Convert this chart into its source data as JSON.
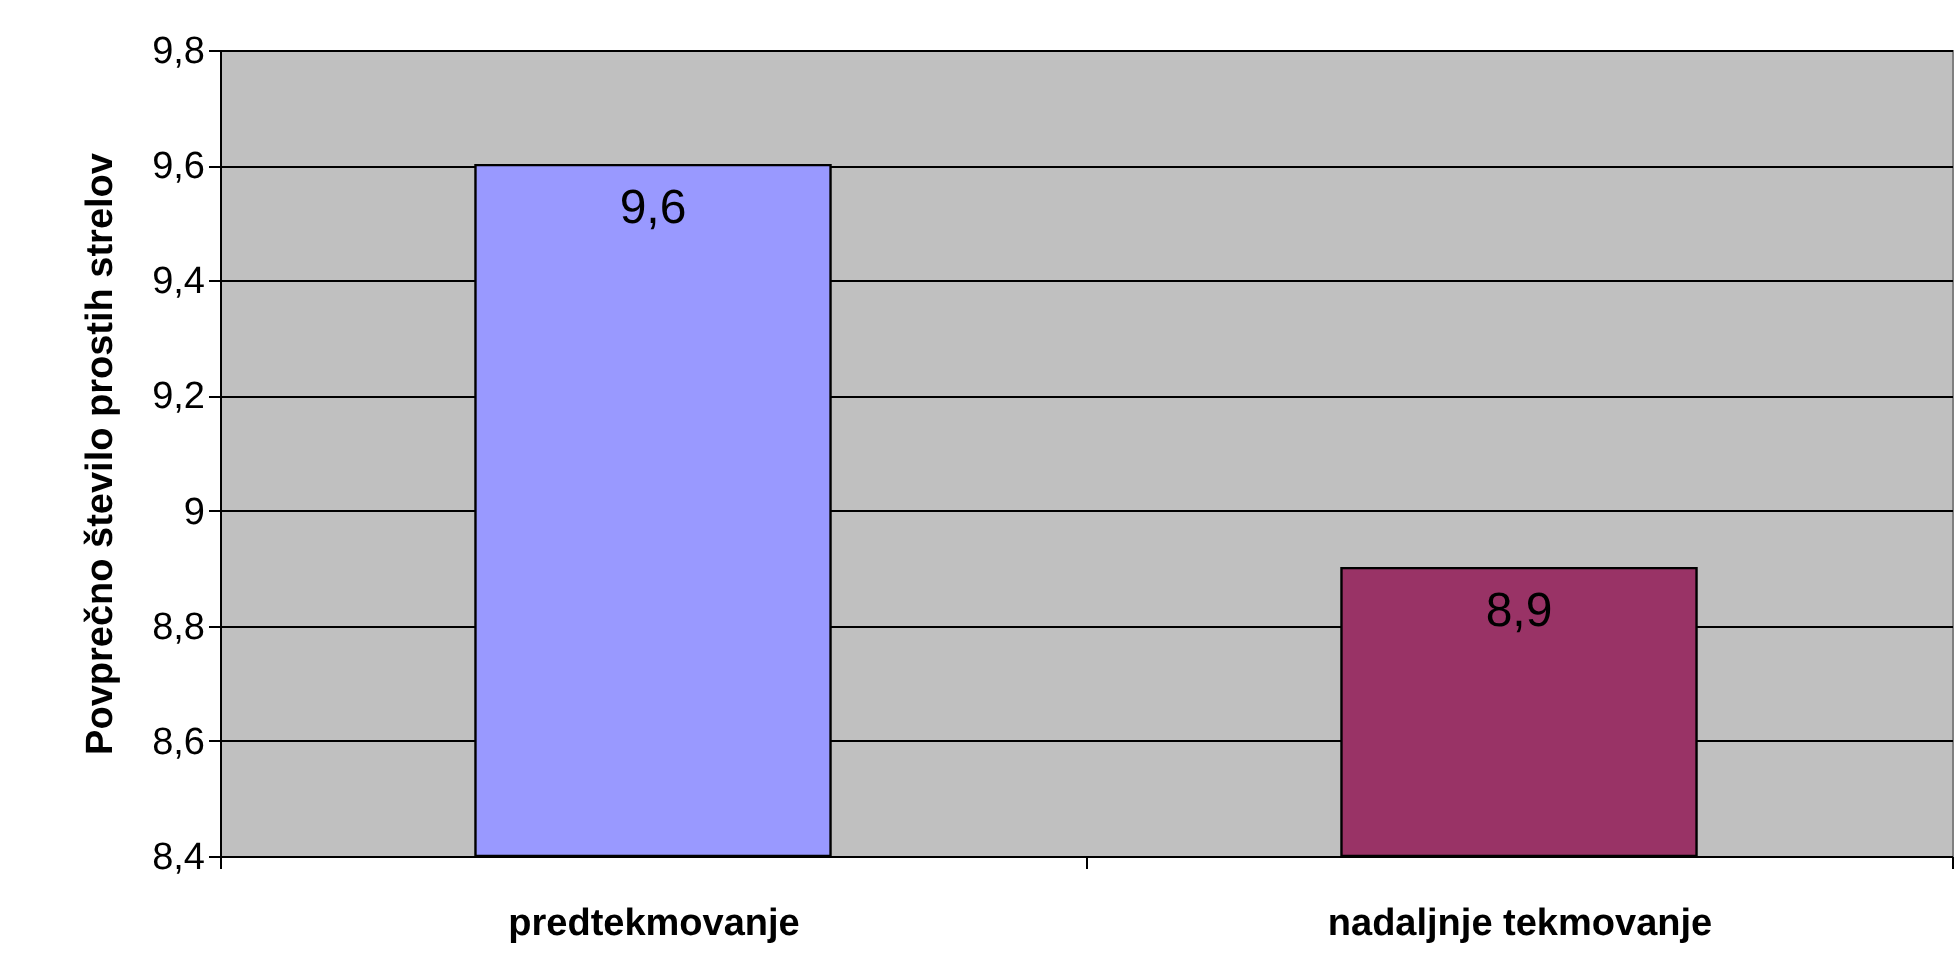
{
  "chart_data": {
    "type": "bar",
    "ylabel": "Povprečno število prostih strelov",
    "categories": [
      "predtekmovanje",
      "nadaljnje tekmovanje"
    ],
    "values": [
      9.6,
      8.9
    ],
    "colors": [
      "#9999ff",
      "#993366"
    ],
    "value_labels": [
      "9,6",
      "8,9"
    ],
    "ylim": [
      8.4,
      9.8
    ],
    "yticks": [
      {
        "value": 8.4,
        "label": "8,4"
      },
      {
        "value": 8.6,
        "label": "8,6"
      },
      {
        "value": 8.8,
        "label": "8,8"
      },
      9,
      {
        "value": 9.2,
        "label": "9,2"
      },
      {
        "value": 9.4,
        "label": "9,4"
      },
      {
        "value": 9.6,
        "label": "9,6"
      },
      {
        "value": 9.8,
        "label": "9,8"
      }
    ],
    "grid": "y"
  }
}
